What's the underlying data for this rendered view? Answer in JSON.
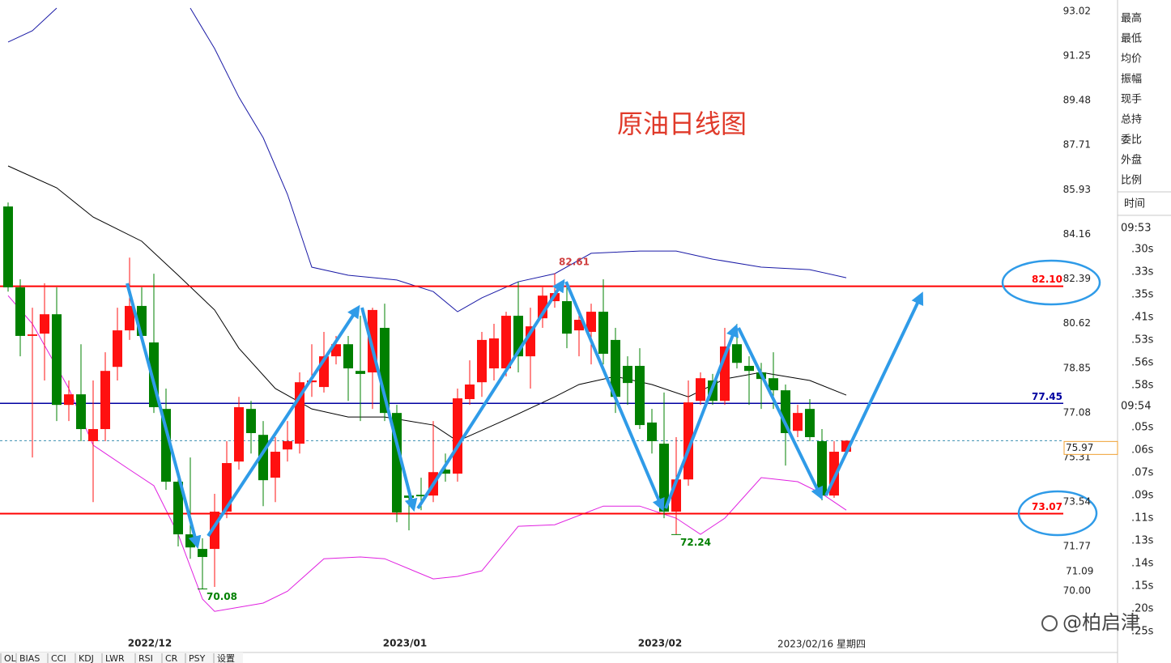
{
  "chart_data": {
    "type": "candlestick",
    "title": "原油日线图",
    "categories": [
      null,
      null,
      null,
      null,
      null,
      null,
      null,
      null,
      null,
      null,
      null,
      null,
      "2022/12",
      null,
      null,
      null,
      null,
      null,
      null,
      null,
      null,
      null,
      null,
      null,
      null,
      null,
      null,
      null,
      null,
      null,
      null,
      null,
      null,
      "2023/01",
      null,
      null,
      null,
      null,
      null,
      null,
      null,
      null,
      null,
      null,
      null,
      null,
      null,
      null,
      null,
      null,
      null,
      null,
      null,
      null,
      "2023/02",
      null,
      null,
      null,
      null,
      null,
      null,
      null,
      null,
      null,
      null,
      null,
      null,
      null,
      null,
      null
    ],
    "open": [
      85.27,
      82.06,
      80.13,
      80.22,
      80.99,
      77.39,
      77.81,
      75.95,
      76.43,
      78.9,
      80.35,
      81.32,
      79.87,
      77.23,
      74.34,
      72.25,
      71.67,
      71.67,
      73.15,
      75.14,
      77.23,
      76.2,
      74.5,
      75.62,
      75.85,
      78.29,
      78.1,
      79.32,
      79.8,
      78.74,
      78.68,
      80.45,
      77.07,
      73.79,
      73.82,
      73.79,
      74.82,
      74.66,
      77.62,
      78.29,
      78.84,
      78.84,
      80.93,
      79.32,
      80.83,
      81.51,
      81.51,
      80.35,
      80.29,
      81.09,
      79.97,
      78.94,
      78.94,
      76.69,
      75.85,
      73.15,
      74.43,
      77.55,
      78.36,
      77.55,
      79.8,
      78.94,
      78.68,
      78.45,
      77.97,
      76.36,
      77.23,
      75.95,
      73.79,
      75.53
    ],
    "high": [
      85.43,
      82.38,
      81.25,
      82.22,
      82.06,
      78.36,
      79.8,
      78.36,
      79.48,
      81.25,
      83.24,
      82.06,
      82.6,
      78.04,
      74.66,
      75.3,
      72.09,
      73.86,
      75.95,
      77.71,
      77.55,
      76.75,
      76.11,
      76.75,
      78.68,
      79.8,
      80.29,
      80.13,
      80.13,
      80.93,
      81.25,
      81.41,
      77.39,
      74.18,
      74.5,
      76.75,
      75.46,
      78.04,
      79.16,
      80.29,
      80.61,
      81.09,
      82.28,
      81.25,
      82.06,
      82.61,
      82.15,
      81.09,
      81.41,
      82.38,
      80.45,
      79.32,
      79.64,
      77.23,
      77.88,
      76.11,
      78.36,
      78.68,
      78.62,
      80.45,
      80.61,
      79.32,
      79.06,
      79.48,
      78.2,
      77.39,
      77.62,
      76.43,
      75.95,
      75.97
    ],
    "low": [
      81.89,
      79.32,
      75.3,
      78.36,
      76.75,
      76.75,
      75.95,
      73.53,
      75.95,
      78.36,
      79.97,
      79.97,
      77.07,
      74.02,
      71.77,
      71.28,
      70.08,
      70.16,
      72.89,
      74.82,
      75.46,
      73.37,
      73.53,
      75.14,
      75.46,
      77.71,
      77.88,
      79.0,
      77.55,
      76.75,
      77.23,
      76.75,
      72.73,
      72.41,
      73.21,
      73.53,
      74.34,
      74.34,
      77.39,
      77.71,
      78.36,
      78.52,
      78.68,
      78.04,
      80.45,
      81.25,
      79.64,
      79.32,
      79.0,
      79.0,
      77.07,
      77.39,
      76.43,
      75.46,
      72.89,
      72.24,
      74.18,
      77.39,
      77.39,
      77.39,
      78.84,
      77.39,
      77.23,
      77.23,
      74.98,
      76.11,
      75.95,
      73.6,
      73.7,
      75.46
    ],
    "close": [
      82.06,
      80.13,
      80.19,
      80.99,
      77.39,
      77.81,
      76.43,
      76.43,
      78.74,
      80.35,
      81.32,
      80.13,
      77.3,
      74.34,
      72.25,
      71.73,
      71.35,
      73.15,
      75.08,
      77.3,
      76.27,
      74.4,
      75.53,
      75.95,
      78.29,
      78.36,
      79.32,
      79.8,
      78.84,
      78.62,
      81.16,
      77.07,
      73.12,
      73.7,
      73.76,
      74.72,
      74.66,
      77.65,
      78.2,
      79.97,
      80.03,
      80.93,
      79.32,
      80.51,
      81.73,
      81.83,
      80.22,
      80.77,
      81.09,
      79.42,
      77.71,
      78.26,
      76.59,
      75.95,
      73.15,
      74.43,
      77.49,
      78.45,
      77.55,
      79.71,
      79.06,
      78.74,
      78.42,
      77.97,
      76.27,
      77.07,
      76.11,
      73.79,
      75.53,
      75.97
    ],
    "up_color": "#ff1010",
    "down_color": "#008000",
    "overlays": [
      {
        "color": "#1a1aa6",
        "x": [
          0,
          2,
          4,
          5,
          15,
          17,
          19,
          21,
          23,
          25,
          28,
          32,
          35,
          37,
          39,
          42,
          45,
          48,
          52,
          55,
          58,
          62,
          66,
          69
        ],
        "values": [
          91.8,
          92.25,
          93.15,
          null,
          93.15,
          91.54,
          89.61,
          88.0,
          85.75,
          82.86,
          82.54,
          82.35,
          81.89,
          81.09,
          81.64,
          82.28,
          82.6,
          83.41,
          83.5,
          83.5,
          83.18,
          82.86,
          82.76,
          82.44
        ]
      },
      {
        "color": "#000000",
        "x": [
          0,
          4,
          7,
          11,
          14,
          17,
          19,
          22,
          25,
          28,
          31,
          35,
          37,
          41,
          45,
          47,
          50,
          53,
          56,
          59,
          62,
          66,
          69
        ],
        "values": [
          86.88,
          86.01,
          84.85,
          83.89,
          82.54,
          81.16,
          79.64,
          78.04,
          77.23,
          76.91,
          76.91,
          76.59,
          75.95,
          76.81,
          77.71,
          78.2,
          78.52,
          78.2,
          77.71,
          78.42,
          78.68,
          78.36,
          77.78
        ]
      },
      {
        "color": "#e020e0",
        "x": [
          0,
          2,
          5,
          7,
          10,
          12,
          14,
          16,
          17,
          21,
          23,
          26,
          29,
          31,
          35,
          37,
          39,
          42,
          45,
          49,
          52,
          55,
          57,
          59,
          62,
          65,
          67,
          69
        ],
        "values": [
          81.73,
          80.61,
          78.04,
          75.79,
          74.82,
          74.18,
          72.25,
          69.68,
          69.19,
          69.52,
          69.99,
          71.28,
          71.35,
          71.28,
          70.48,
          70.58,
          70.8,
          72.57,
          72.63,
          73.37,
          73.37,
          72.89,
          72.25,
          72.89,
          74.5,
          74.34,
          73.86,
          73.21
        ]
      }
    ],
    "levels": {
      "values": [
        82.1,
        77.45,
        73.07
      ],
      "value_labels": [
        "82.10",
        "77.45",
        "73.07"
      ],
      "colors": [
        "#ff0000",
        "#0000a0",
        "#ff0000"
      ]
    },
    "last_price": 75.97,
    "axis_mark": 71.09,
    "point_labels": {
      "x": [
        45,
        16,
        55
      ],
      "values": [
        82.61,
        70.08,
        72.24
      ],
      "colors": [
        "#d04040",
        "#008000",
        "#008000"
      ]
    },
    "cursor_date": "2023/02/16 星期四",
    "ylim": [
      67.59,
      93.47
    ],
    "yticks": [
      93.02,
      91.25,
      89.48,
      87.71,
      85.93,
      84.16,
      82.39,
      80.62,
      78.85,
      77.08,
      75.31,
      73.54,
      71.77,
      {
        "value": 70,
        "label": "70.00"
      }
    ]
  },
  "side_panel": {
    "fields": [
      "最高",
      "最低",
      "均价",
      "振幅",
      "现手",
      "总持",
      "委比",
      "外盘",
      "比例"
    ],
    "time_header": "时间",
    "ticks": [
      {
        "time": "09:53",
        "seconds": [
          ".30s",
          ".33s",
          ".35s",
          ".41s",
          ".53s",
          ".56s",
          ".58s"
        ]
      },
      {
        "time": "09:54",
        "seconds": [
          ".05s",
          ".06s",
          ".07s",
          ".09s",
          ".11s",
          ".13s",
          ".14s",
          ".15s",
          ".20s",
          ".25s"
        ]
      }
    ]
  },
  "toolbar": [
    "OL",
    "BIAS",
    "CCI",
    "KDJ",
    "LWR",
    "RSI",
    "CR",
    "PSY",
    "设置"
  ],
  "watermark": "@柏启津"
}
